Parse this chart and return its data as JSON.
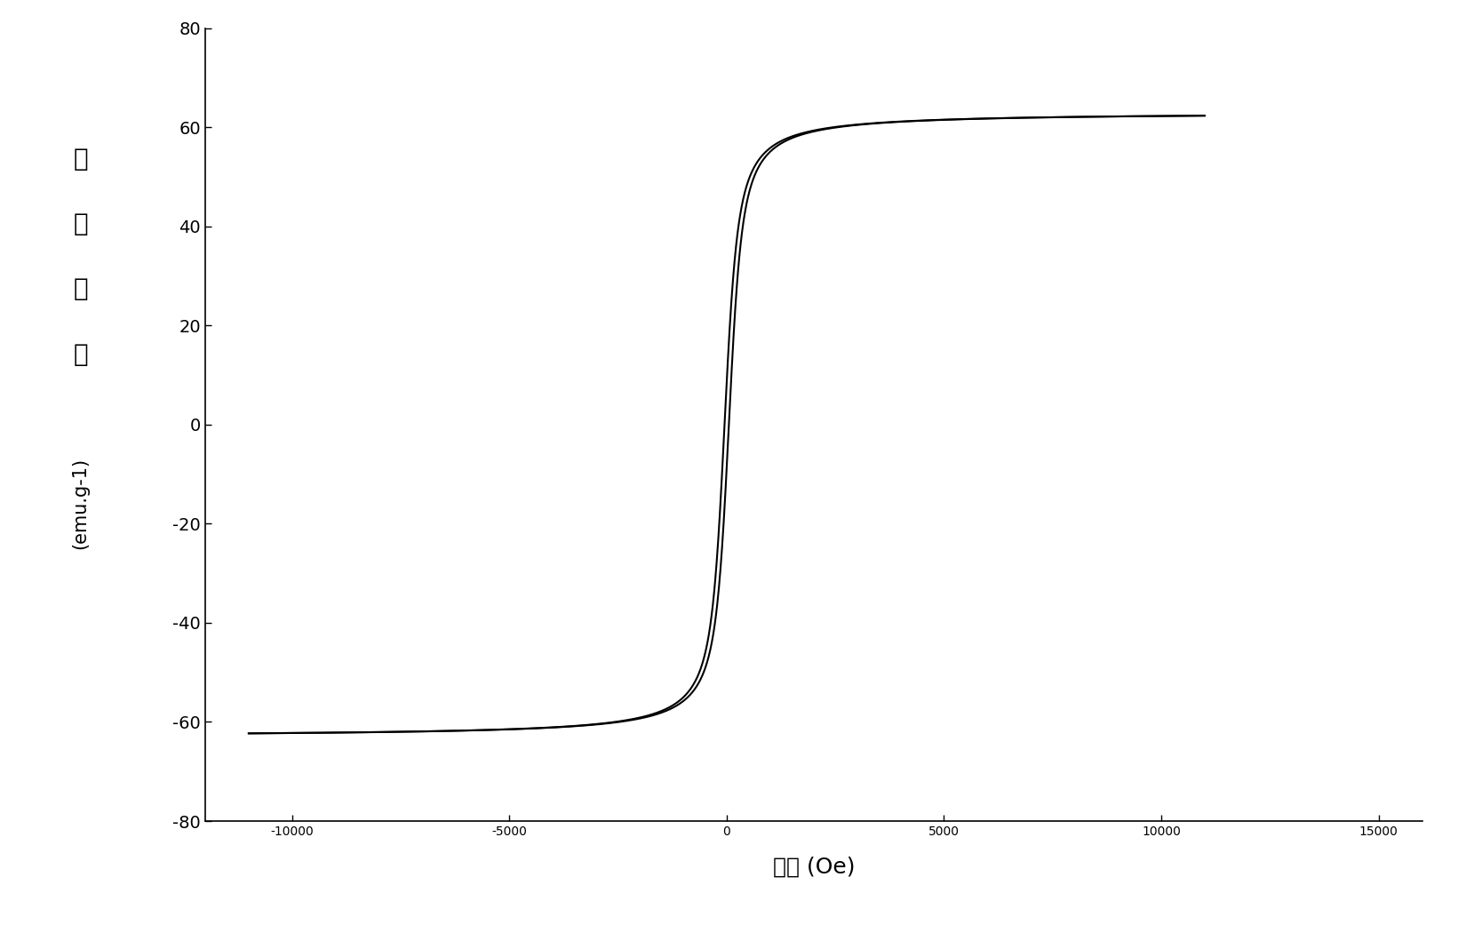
{
  "xlabel": "磁场 (Oe)",
  "ylabel_chars": [
    "磁",
    "化",
    "强",
    "度"
  ],
  "ylabel_unit": "(emu.g-1)",
  "xlim": [
    -12000,
    16000
  ],
  "ylim": [
    -80,
    80
  ],
  "xticks": [
    -10000,
    -5000,
    0,
    5000,
    10000,
    15000
  ],
  "yticks": [
    -80,
    -60,
    -40,
    -20,
    0,
    20,
    40,
    60,
    80
  ],
  "saturation": 63.0,
  "coercivity": 50,
  "steepness": 120,
  "curve_color": "#000000",
  "line_width": 1.5,
  "background_color": "#ffffff",
  "fig_width": 16.5,
  "fig_height": 10.5,
  "dpi": 100,
  "tick_fontsize": 14,
  "label_fontsize": 18,
  "unit_fontsize": 15
}
